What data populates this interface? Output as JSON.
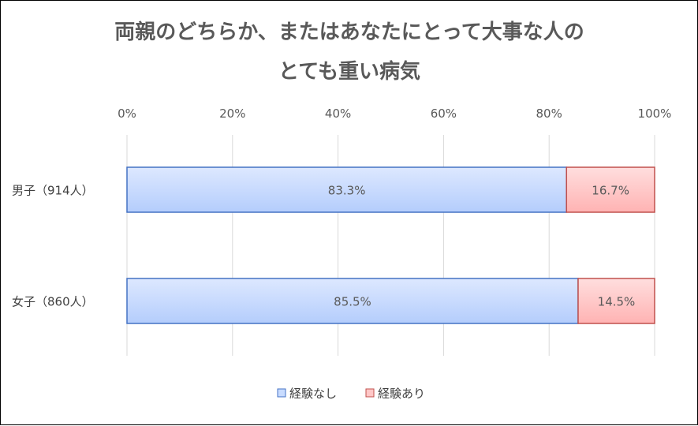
{
  "chart_data": {
    "type": "bar",
    "orientation": "horizontal",
    "stacked": "percent",
    "title_lines": [
      "両親のどちらか、またはあなたにとって大事な人の",
      "とても重い病気"
    ],
    "categories": [
      "男子（914人）",
      "女子（860人）"
    ],
    "series": [
      {
        "name": "経験なし",
        "values": [
          83.3,
          85.5
        ],
        "labels": [
          "83.3%",
          "85.5%"
        ],
        "color": "#c9dcff",
        "border": "#4472c4"
      },
      {
        "name": "経験あり",
        "values": [
          16.7,
          14.5
        ],
        "labels": [
          "16.7%",
          "14.5%"
        ],
        "color": "#ffc7c7",
        "border": "#c0504d"
      }
    ],
    "x_ticks": [
      "0%",
      "20%",
      "40%",
      "60%",
      "80%",
      "100%"
    ],
    "xlim": [
      0,
      100
    ],
    "x_axis_position": "top",
    "grid": true,
    "legend_position": "bottom"
  }
}
